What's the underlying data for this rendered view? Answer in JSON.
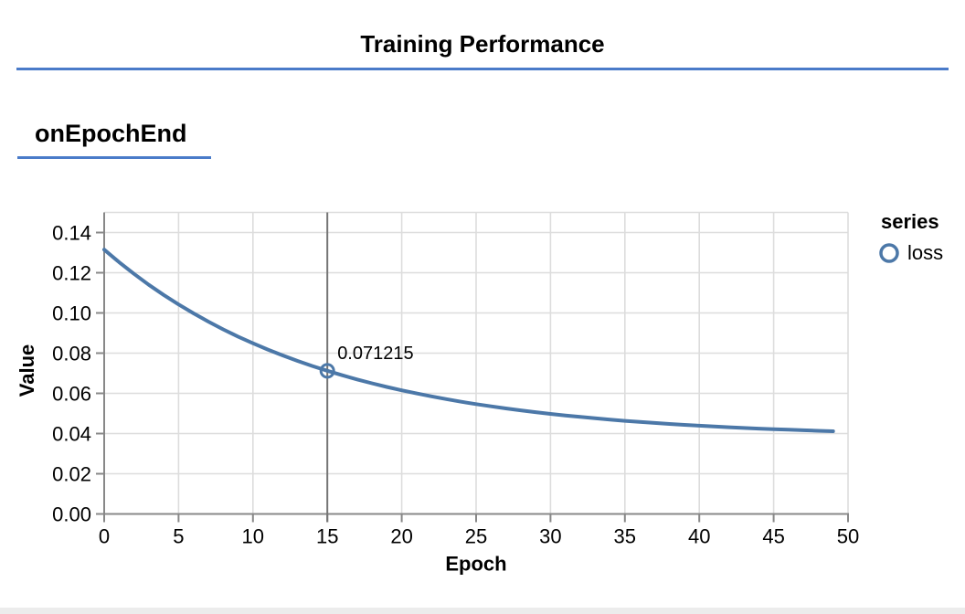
{
  "page": {
    "title": "Training Performance",
    "section_heading": "onEpochEnd"
  },
  "colors": {
    "heading_rule": "#4a7bc9",
    "series_line": "#4c78a8",
    "grid": "#dddddd",
    "axis": "#888888",
    "hover_rule": "#757575",
    "text": "#000000",
    "bottom_strip": "#ececec"
  },
  "chart_data": {
    "type": "line",
    "title": "",
    "xlabel": "Epoch",
    "ylabel": "Value",
    "xlim": [
      0,
      50
    ],
    "ylim": [
      0,
      0.15
    ],
    "grid": true,
    "x_ticks": [
      0,
      5,
      10,
      15,
      20,
      25,
      30,
      35,
      40,
      45,
      50
    ],
    "x_tick_labels": [
      "0",
      "5",
      "10",
      "15",
      "20",
      "25",
      "30",
      "35",
      "40",
      "45",
      "50"
    ],
    "y_ticks": [
      0,
      0.02,
      0.04,
      0.06,
      0.08,
      0.1,
      0.12,
      0.14
    ],
    "y_tick_labels": [
      "0.00",
      "0.02",
      "0.04",
      "0.06",
      "0.08",
      "0.10",
      "0.12",
      "0.14"
    ],
    "legend": {
      "title": "series",
      "position": "right",
      "entries": [
        {
          "label": "loss",
          "symbol": "open-circle",
          "color": "#4c78a8"
        }
      ]
    },
    "series": [
      {
        "name": "loss",
        "x": [
          0,
          1,
          2,
          3,
          4,
          5,
          6,
          7,
          8,
          9,
          10,
          11,
          12,
          13,
          14,
          15,
          16,
          17,
          18,
          19,
          20,
          21,
          22,
          23,
          24,
          25,
          26,
          27,
          28,
          29,
          30,
          31,
          32,
          33,
          34,
          35,
          36,
          37,
          38,
          39,
          40,
          41,
          42,
          43,
          44,
          45,
          46,
          47,
          48,
          49
        ],
        "values": [
          0.1315,
          0.125267,
          0.119449,
          0.114019,
          0.108951,
          0.104221,
          0.099806,
          0.095685,
          0.091839,
          0.088249,
          0.084898,
          0.08177,
          0.078851,
          0.076127,
          0.073584,
          0.071215,
          0.068996,
          0.066928,
          0.064998,
          0.063197,
          0.061516,
          0.059947,
          0.058482,
          0.057115,
          0.055839,
          0.054648,
          0.053537,
          0.052499,
          0.051531,
          0.050628,
          0.049784,
          0.048997,
          0.048262,
          0.047576,
          0.046936,
          0.046339,
          0.045781,
          0.045261,
          0.044775,
          0.044321,
          0.043898,
          0.043503,
          0.043134,
          0.04279,
          0.042469,
          0.042169,
          0.041889,
          0.041628,
          0.041385,
          0.041157
        ]
      }
    ],
    "hover_point": {
      "series": "loss",
      "x": 15,
      "value": 0.071215,
      "label": "0.071215"
    }
  }
}
